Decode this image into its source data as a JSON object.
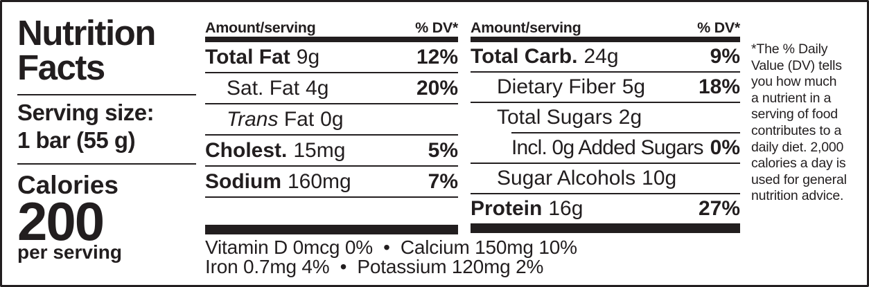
{
  "label": {
    "title_line1": "Nutrition",
    "title_line2": "Facts",
    "serving_size_label": "Serving size:",
    "serving_size_value": "1 bar (55 g)",
    "calories_label": "Calories",
    "calories_value": "200",
    "calories_sub": "per serving"
  },
  "columns": [
    {
      "header_amount": "Amount/serving",
      "header_dv": "% DV*",
      "rows": [
        {
          "name": "Total Fat",
          "amount": "9g",
          "dv": "12%"
        },
        {
          "name": "Sat. Fat",
          "amount": "4g",
          "dv": "20%"
        },
        {
          "name_italic": "Trans",
          "name": "Fat",
          "amount": "0g",
          "dv": ""
        },
        {
          "name": "Cholest.",
          "amount": "15mg",
          "dv": "5%"
        },
        {
          "name": "Sodium",
          "amount": "160mg",
          "dv": "7%"
        }
      ]
    },
    {
      "header_amount": "Amount/serving",
      "header_dv": "% DV*",
      "rows": [
        {
          "name": "Total Carb.",
          "amount": "24g",
          "dv": "9%"
        },
        {
          "name": "Dietary Fiber",
          "amount": "5g",
          "dv": "18%"
        },
        {
          "name": "Total Sugars",
          "amount": "2g",
          "dv": ""
        },
        {
          "name": "Incl. 0g Added Sugars",
          "amount": "",
          "dv": "0%"
        },
        {
          "name": "Sugar Alcohols",
          "amount": "10g",
          "dv": ""
        },
        {
          "name": "Protein",
          "amount": "16g",
          "dv": "27%"
        }
      ]
    }
  ],
  "micronutrients": {
    "line1": "Vitamin D 0mcg 0%  •  Calcium 150mg 10%",
    "line2": "Iron 0.7mg 4%  •  Potassium 120mg 2%"
  },
  "footnote": "*The % Daily\nValue (DV) tells\nyou how much\na nutrient in a\nserving of food\ncontributes to a\ndaily diet. 2,000\ncalories a day is\nused for general\nnutrition advice."
}
